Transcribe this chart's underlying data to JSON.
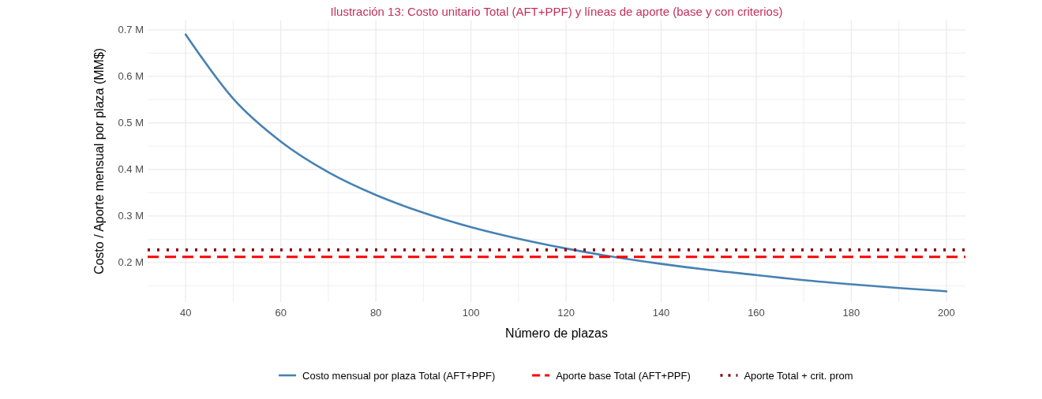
{
  "chart_data": {
    "type": "line",
    "title": "Ilustración 13: Costo unitario Total (AFT+PPF) y líneas de aporte (base y con criterios)",
    "xlabel": "Número de plazas",
    "ylabel": "Costo / Aporte mensual por plaza (MM$)",
    "xlim": [
      32,
      204
    ],
    "xticks": [
      40,
      {
        "value": 50,
        "label": null
      },
      60,
      {
        "value": 70,
        "label": null
      },
      80,
      {
        "value": 90,
        "label": null
      },
      100,
      {
        "value": 110,
        "label": null
      },
      120,
      {
        "value": 130,
        "label": null
      },
      140,
      {
        "value": 150,
        "label": null
      },
      160,
      {
        "value": 170,
        "label": null
      },
      180,
      {
        "value": 190,
        "label": null
      },
      200
    ],
    "ylim": [
      0.115,
      0.72
    ],
    "yticks": [
      {
        "value": 0.15,
        "label": null
      },
      {
        "value": 0.2,
        "label": "0.2 M"
      },
      {
        "value": 0.25,
        "label": null
      },
      {
        "value": 0.3,
        "label": "0.3 M"
      },
      {
        "value": 0.35,
        "label": null
      },
      {
        "value": 0.4,
        "label": "0.4 M"
      },
      {
        "value": 0.45,
        "label": null
      },
      {
        "value": 0.5,
        "label": "0.5 M"
      },
      {
        "value": 0.55,
        "label": null
      },
      {
        "value": 0.6,
        "label": "0.6 M"
      },
      {
        "value": 0.65,
        "label": null
      },
      {
        "value": 0.7,
        "label": "0.7 M"
      }
    ],
    "grid": true,
    "legend": "bottom",
    "series": [
      {
        "name": "Costo mensual por plaza Total (AFT+PPF)",
        "color": "#4682b4",
        "line_style": "solid",
        "x": [
          40,
          50,
          60,
          70,
          80,
          90,
          100,
          110,
          120,
          130,
          140,
          150,
          160,
          170,
          180,
          190,
          200
        ],
        "values": [
          0.69,
          0.552,
          0.46,
          0.394,
          0.345,
          0.307,
          0.276,
          0.251,
          0.23,
          0.212,
          0.197,
          0.184,
          0.173,
          0.162,
          0.153,
          0.145,
          0.138
        ]
      },
      {
        "name": "Aporte base Total (AFT+PPF)",
        "color": "#ff0000",
        "line_style": "dashed",
        "x": [
          32,
          204
        ],
        "values": [
          0.212,
          0.212
        ]
      },
      {
        "name": "Aporte Total + crit. prom",
        "color": "#8b0000",
        "line_style": "dotted",
        "x": [
          32,
          204
        ],
        "values": [
          0.227,
          0.227
        ]
      }
    ]
  }
}
